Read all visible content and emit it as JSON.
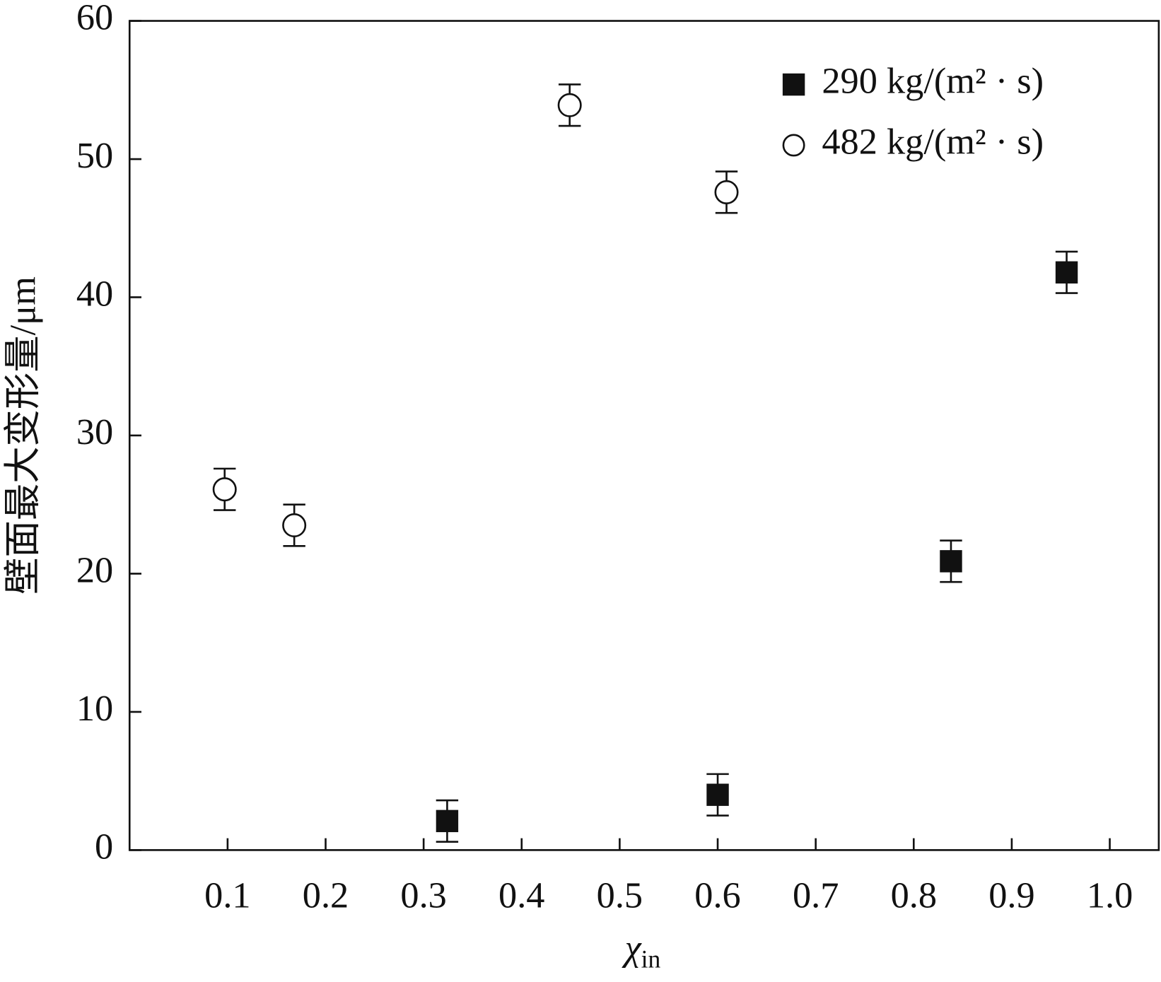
{
  "chart_data": {
    "type": "scatter",
    "x_label": {
      "symbol": "χ",
      "subscript": "in"
    },
    "y_label": "壁面最大变形量/μm",
    "xlim": [
      0,
      1.05
    ],
    "ylim": [
      0,
      60
    ],
    "xticks": [
      0.1,
      0.2,
      0.3,
      0.4,
      0.5,
      0.6,
      0.7,
      0.8,
      0.9,
      {
        "value": 1,
        "label": "1.0"
      }
    ],
    "yticks": [
      0,
      10,
      20,
      30,
      40,
      50,
      60
    ],
    "legend": "upper right",
    "series": [
      {
        "name": "290 kg/(m² · s)",
        "marker": "filled-square",
        "color": "#111111",
        "x": [
          0.324,
          0.6,
          0.838,
          0.956
        ],
        "values": [
          2.1,
          4.0,
          20.9,
          41.8
        ],
        "errors": [
          1.5,
          1.5,
          1.5,
          1.5
        ]
      },
      {
        "name": "482 kg/(m² · s)",
        "marker": "open-circle",
        "color": "#111111",
        "x": [
          0.097,
          0.168,
          0.449,
          0.609
        ],
        "values": [
          26.1,
          23.5,
          53.9,
          47.6
        ],
        "errors": [
          1.5,
          1.5,
          1.5,
          1.5
        ]
      }
    ]
  }
}
